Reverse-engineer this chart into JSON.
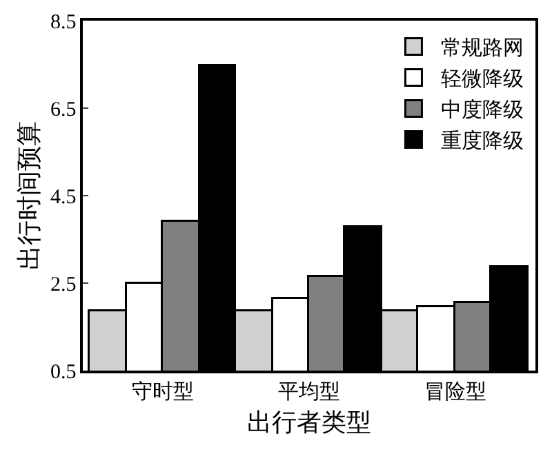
{
  "chart_data": {
    "type": "bar",
    "xlabel": "出行者类型",
    "ylabel": "出行时间预算",
    "categories": [
      "守时型",
      "平均型",
      "冒险型"
    ],
    "series": [
      {
        "name": "常规路网",
        "color": "#d0d0d0",
        "values": [
          1.86,
          1.86,
          1.86
        ]
      },
      {
        "name": "轻微降级",
        "color": "#ffffff",
        "values": [
          2.5,
          2.13,
          1.96
        ]
      },
      {
        "name": "中度降级",
        "color": "#808080",
        "values": [
          3.9,
          2.64,
          2.04
        ]
      },
      {
        "name": "重度降级",
        "color": "#000000",
        "values": [
          7.45,
          3.77,
          2.85
        ]
      }
    ],
    "ylim": [
      0.5,
      8.5
    ],
    "yticks": [
      0.5,
      2.5,
      4.5,
      6.5,
      8.5
    ],
    "legend": "top right"
  }
}
